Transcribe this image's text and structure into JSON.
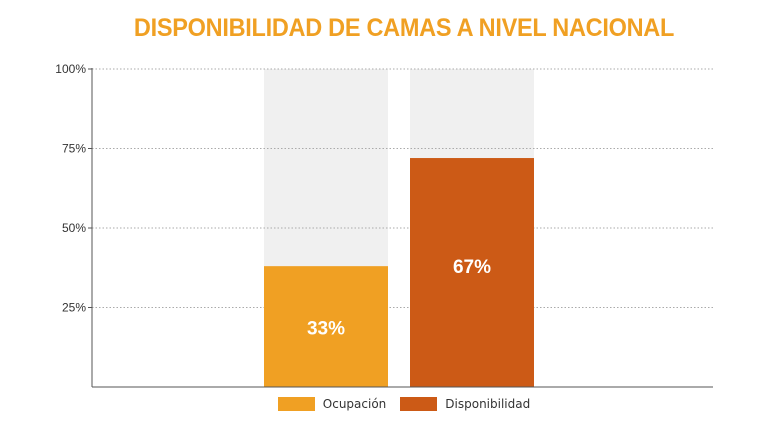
{
  "chart_data": {
    "type": "bar",
    "title": "DISPONIBILIDAD DE CAMAS A NIVEL NACIONAL",
    "categories": [
      "Ocupación",
      "Disponibilidad"
    ],
    "values": [
      33,
      67
    ],
    "display_values": [
      38,
      72
    ],
    "value_labels": [
      "33%",
      "67%"
    ],
    "ylim": [
      0,
      100
    ],
    "yticks": [
      25,
      50,
      75,
      100
    ],
    "ytick_labels": [
      "25%",
      "50%",
      "75%",
      "100%"
    ],
    "grid": true,
    "background_value": 100,
    "legend": {
      "position": "bottom-center",
      "entries": [
        "Ocupación",
        "Disponibilidad"
      ]
    },
    "colors": {
      "series": [
        "#f0a023",
        "#cc5a16"
      ],
      "background_bar": "#f0f0f0",
      "grid": "#aaaaaa",
      "axis": "#555555",
      "title": "#f0a023"
    }
  }
}
